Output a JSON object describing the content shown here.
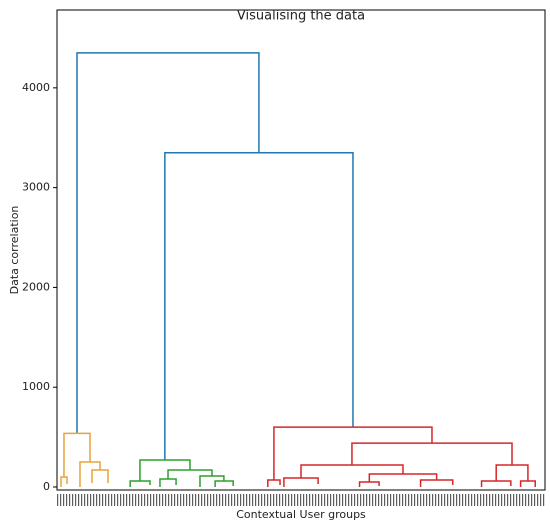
{
  "chart_data": {
    "type": "dendrogram",
    "title": "Visualising the data",
    "xlabel": "Contextual User groups",
    "ylabel": "Data correlation",
    "xlim": [
      0,
      100
    ],
    "ylim": [
      -30,
      4780
    ],
    "yticks": [
      0,
      1000,
      2000,
      3000,
      4000
    ],
    "links": [
      {
        "x": [
          4.1,
          4.1,
          41.38,
          41.38
        ],
        "y": [
          538,
          4350,
          4350,
          3350
        ],
        "color": "#1f77b4"
      },
      {
        "x": [
          22.1,
          22.1,
          60.65,
          60.65
        ],
        "y": [
          270,
          3350,
          3350,
          600
        ],
        "color": "#1f77b4"
      },
      {
        "x": [
          1.43,
          1.43,
          6.76,
          6.76
        ],
        "y": [
          100,
          538,
          538,
          250
        ],
        "color": "#e8a33a"
      },
      {
        "x": [
          4.71,
          4.71,
          8.81,
          8.81
        ],
        "y": [
          0,
          250,
          250,
          170
        ],
        "color": "#e8a33a"
      },
      {
        "x": [
          7.17,
          7.17,
          10.45,
          10.45
        ],
        "y": [
          40,
          170,
          170,
          40
        ],
        "color": "#e8a33a"
      },
      {
        "x": [
          0.82,
          0.82,
          2.05,
          2.05
        ],
        "y": [
          0,
          100,
          100,
          30
        ],
        "color": "#e8a33a"
      },
      {
        "x": [
          17.0,
          17.0,
          27.25,
          27.25
        ],
        "y": [
          60,
          270,
          270,
          170
        ],
        "color": "#2ca02c"
      },
      {
        "x": [
          15.0,
          15.0,
          19.06,
          19.06
        ],
        "y": [
          0,
          60,
          60,
          20
        ],
        "color": "#2ca02c"
      },
      {
        "x": [
          22.75,
          22.75,
          31.76,
          31.76
        ],
        "y": [
          80,
          170,
          170,
          110
        ],
        "color": "#2ca02c"
      },
      {
        "x": [
          21.1,
          21.1,
          24.4,
          24.4
        ],
        "y": [
          0,
          80,
          80,
          20
        ],
        "color": "#2ca02c"
      },
      {
        "x": [
          29.3,
          29.3,
          34.2,
          34.2
        ],
        "y": [
          0,
          110,
          110,
          60
        ],
        "color": "#2ca02c"
      },
      {
        "x": [
          32.4,
          32.4,
          36.1,
          36.1
        ],
        "y": [
          0,
          60,
          60,
          10
        ],
        "color": "#2ca02c"
      },
      {
        "x": [
          44.45,
          44.45,
          76.84,
          76.84
        ],
        "y": [
          70,
          600,
          600,
          440
        ],
        "color": "#d62728"
      },
      {
        "x": [
          43.2,
          43.2,
          45.7,
          45.7
        ],
        "y": [
          0,
          70,
          70,
          20
        ],
        "color": "#d62728"
      },
      {
        "x": [
          60.44,
          60.44,
          93.24,
          93.24
        ],
        "y": [
          220,
          440,
          440,
          220
        ],
        "color": "#d62728"
      },
      {
        "x": [
          50.0,
          50.0,
          70.9,
          70.9
        ],
        "y": [
          90,
          220,
          220,
          130
        ],
        "color": "#d62728"
      },
      {
        "x": [
          46.5,
          46.5,
          53.5,
          53.5
        ],
        "y": [
          0,
          90,
          90,
          30
        ],
        "color": "#d62728"
      },
      {
        "x": [
          64.0,
          64.0,
          77.8,
          77.8
        ],
        "y": [
          50,
          130,
          130,
          70
        ],
        "color": "#d62728"
      },
      {
        "x": [
          62.0,
          62.0,
          66.0,
          66.0
        ],
        "y": [
          0,
          50,
          50,
          10
        ],
        "color": "#d62728"
      },
      {
        "x": [
          74.5,
          74.5,
          81.1,
          81.1
        ],
        "y": [
          0,
          70,
          70,
          20
        ],
        "color": "#d62728"
      },
      {
        "x": [
          90.0,
          90.0,
          96.5,
          96.5
        ],
        "y": [
          60,
          220,
          220,
          60
        ],
        "color": "#d62728"
      },
      {
        "x": [
          87.0,
          87.0,
          93.0,
          93.0
        ],
        "y": [
          0,
          60,
          60,
          10
        ],
        "color": "#d62728"
      },
      {
        "x": [
          95.0,
          95.0,
          98.0,
          98.0
        ],
        "y": [
          0,
          60,
          60,
          0
        ],
        "color": "#d62728"
      }
    ]
  }
}
